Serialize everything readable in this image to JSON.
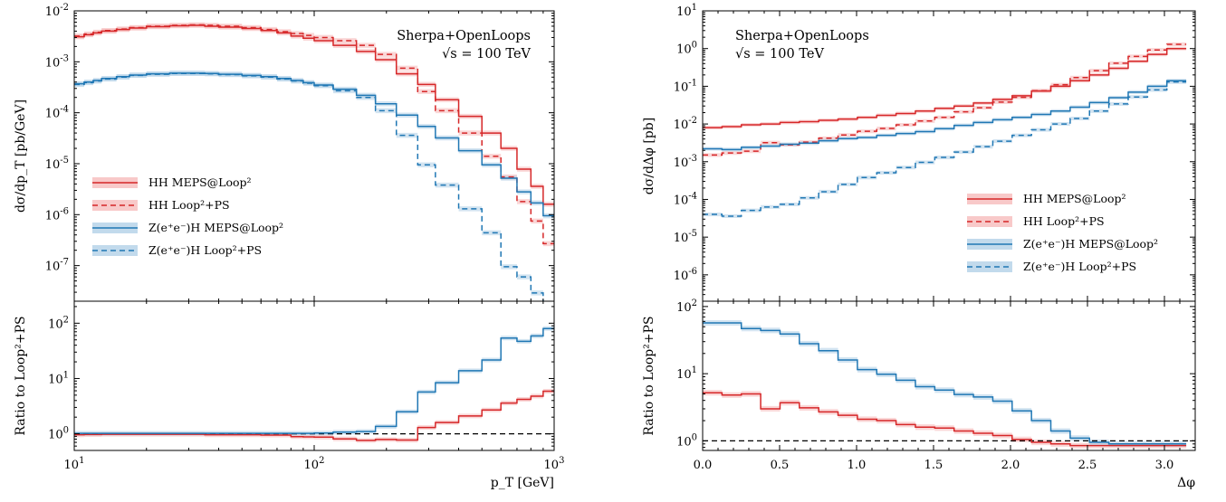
{
  "colors": {
    "hh": "#d62728",
    "zh": "#1f77b4",
    "hh_band": "#f5b7b7",
    "zh_band": "#aecde6",
    "ref_line": "#000000"
  },
  "chart_data": [
    {
      "id": "pt",
      "type": "line",
      "annotation": [
        "Sherpa+OpenLoops",
        "√s = 100 TeV"
      ],
      "xlabel": "p_T [GeV]",
      "xscale": "log",
      "xlim": [
        10,
        1000
      ],
      "xticks": [
        {
          "v": 10,
          "label": "10^1"
        },
        {
          "v": 100,
          "label": "10^2"
        },
        {
          "v": 1000,
          "label": "10^3"
        }
      ],
      "main": {
        "ylabel": "dσ/dp_T [pb/GeV]",
        "yscale": "log",
        "ylim": [
          2e-08,
          0.01
        ],
        "yticks": [
          {
            "v": 1e-07,
            "label": "10^-7"
          },
          {
            "v": 1e-06,
            "label": "10^-6"
          },
          {
            "v": 1e-05,
            "label": "10^-5"
          },
          {
            "v": 0.0001,
            "label": "10^-4"
          },
          {
            "v": 0.001,
            "label": "10^-3"
          },
          {
            "v": 0.01,
            "label": "10^-2"
          }
        ],
        "legend_position": "lower-left",
        "series": [
          {
            "name": "HH MEPS@Loop²",
            "color_key": "hh",
            "dashed": false,
            "band": true,
            "edges": [
              10,
              11,
              12,
              13,
              15,
              17,
              20,
              25,
              30,
              35,
              40,
              50,
              60,
              70,
              80,
              90,
              100,
              120,
              150,
              180,
              220,
              270,
              320,
              400,
              500,
              600,
              700,
              800,
              900,
              1000
            ],
            "values": [
              0.0031,
              0.0034,
              0.0037,
              0.004,
              0.0043,
              0.0046,
              0.0049,
              0.0051,
              0.0052,
              0.005,
              0.0048,
              0.0045,
              0.0041,
              0.0037,
              0.0032,
              0.0029,
              0.0026,
              0.0021,
              0.0016,
              0.0011,
              0.00058,
              0.00036,
              0.00018,
              8.5e-05,
              4e-05,
              2e-05,
              7.8e-06,
              3.6e-06,
              1.6e-06
            ]
          },
          {
            "name": "HH Loop²+PS",
            "color_key": "hh",
            "dashed": true,
            "band": true,
            "edges": [
              10,
              11,
              12,
              13,
              15,
              17,
              20,
              25,
              30,
              35,
              40,
              50,
              60,
              70,
              80,
              90,
              100,
              120,
              150,
              180,
              220,
              270,
              320,
              400,
              500,
              600,
              700,
              800,
              900,
              1000
            ],
            "values": [
              0.0032,
              0.0035,
              0.0038,
              0.0041,
              0.0044,
              0.0047,
              0.005,
              0.0052,
              0.0053,
              0.0052,
              0.005,
              0.0047,
              0.0043,
              0.0039,
              0.0036,
              0.0033,
              0.003,
              0.0026,
              0.0021,
              0.0014,
              0.00075,
              0.00026,
              0.00011,
              4e-05,
              1.4e-05,
              5.5e-06,
              1.8e-06,
              7.5e-07,
              2.7e-07
            ]
          },
          {
            "name": "Z(e⁺e⁻)H MEPS@Loop²",
            "color_key": "zh",
            "dashed": false,
            "band": true,
            "edges": [
              10,
              11,
              12,
              13,
              15,
              17,
              20,
              25,
              30,
              35,
              40,
              50,
              60,
              70,
              80,
              90,
              100,
              120,
              150,
              180,
              220,
              270,
              320,
              400,
              500,
              600,
              700,
              800,
              900,
              1000
            ],
            "values": [
              0.00037,
              0.0004,
              0.00043,
              0.00047,
              0.00051,
              0.00055,
              0.00058,
              0.0006,
              0.0006,
              0.00059,
              0.00057,
              0.00054,
              0.00051,
              0.00047,
              0.00043,
              0.00039,
              0.00035,
              0.00029,
              0.00022,
              0.00015,
              9e-05,
              5.4e-05,
              3.2e-05,
              1.8e-05,
              9.5e-06,
              5.2e-06,
              2.8e-06,
              1.7e-06,
              9.5e-07
            ]
          },
          {
            "name": "Z(e⁺e⁻)H Loop²+PS",
            "color_key": "zh",
            "dashed": true,
            "band": true,
            "edges": [
              10,
              11,
              12,
              13,
              15,
              17,
              20,
              25,
              30,
              35,
              40,
              50,
              60,
              70,
              80,
              90,
              100,
              120,
              150,
              180,
              220,
              270,
              320,
              400,
              500,
              600,
              700,
              800,
              900,
              1000
            ],
            "values": [
              0.00036,
              0.00039,
              0.00042,
              0.00046,
              0.0005,
              0.00054,
              0.00057,
              0.00059,
              0.00059,
              0.00058,
              0.00056,
              0.00053,
              0.0005,
              0.00046,
              0.00042,
              0.00038,
              0.00034,
              0.00027,
              0.0002,
              0.00011,
              3.6e-05,
              9.5e-06,
              3.8e-06,
              1.3e-06,
              4.4e-07,
              9.5e-08,
              6e-08,
              2.9e-08,
              1.2e-08
            ]
          }
        ]
      },
      "ratio": {
        "ylabel": "Ratio to Loop²+PS",
        "yscale": "log",
        "ylim": [
          0.5,
          250
        ],
        "yticks": [
          {
            "v": 1,
            "label": "10^0"
          },
          {
            "v": 10,
            "label": "10^1"
          },
          {
            "v": 100,
            "label": "10^2"
          }
        ],
        "reference": 1,
        "series": [
          {
            "color_key": "hh",
            "edges": [
              10,
              11,
              12,
              13,
              15,
              17,
              20,
              25,
              30,
              35,
              40,
              50,
              60,
              70,
              80,
              90,
              100,
              120,
              150,
              180,
              220,
              270,
              320,
              400,
              500,
              600,
              700,
              800,
              900,
              1000
            ],
            "values": [
              0.96,
              0.97,
              0.97,
              0.98,
              0.98,
              0.98,
              0.98,
              0.98,
              0.98,
              0.96,
              0.96,
              0.96,
              0.95,
              0.95,
              0.89,
              0.88,
              0.87,
              0.81,
              0.76,
              0.79,
              0.77,
              1.3,
              1.6,
              2.1,
              2.7,
              3.6,
              4.2,
              4.8,
              5.9
            ]
          },
          {
            "color_key": "zh",
            "edges": [
              10,
              11,
              12,
              13,
              15,
              17,
              20,
              25,
              30,
              35,
              40,
              50,
              60,
              70,
              80,
              90,
              100,
              120,
              150,
              180,
              220,
              270,
              320,
              400,
              500,
              600,
              700,
              800,
              900,
              1000
            ],
            "values": [
              1.02,
              1.02,
              1.02,
              1.02,
              1.02,
              1.02,
              1.02,
              1.02,
              1.02,
              1.02,
              1.02,
              1.02,
              1.02,
              1.02,
              1.02,
              1.02,
              1.03,
              1.07,
              1.1,
              1.36,
              2.5,
              5.7,
              8.4,
              13.8,
              21.6,
              54,
              47,
              59,
              80
            ]
          }
        ]
      }
    },
    {
      "id": "dphi",
      "type": "line",
      "annotation": [
        "Sherpa+OpenLoops",
        "√s = 100 TeV"
      ],
      "xlabel": "Δφ",
      "xscale": "linear",
      "xlim": [
        0,
        3.2
      ],
      "xticks": [
        {
          "v": 0,
          "label": "0.0"
        },
        {
          "v": 0.5,
          "label": "0.5"
        },
        {
          "v": 1,
          "label": "1.0"
        },
        {
          "v": 1.5,
          "label": "1.5"
        },
        {
          "v": 2,
          "label": "2.0"
        },
        {
          "v": 2.5,
          "label": "2.5"
        },
        {
          "v": 3,
          "label": "3.0"
        }
      ],
      "main": {
        "ylabel": "dσ/dΔφ [pb]",
        "yscale": "log",
        "ylim": [
          2e-07,
          10
        ],
        "yticks": [
          {
            "v": 1e-06,
            "label": "10^-6"
          },
          {
            "v": 1e-05,
            "label": "10^-5"
          },
          {
            "v": 0.0001,
            "label": "10^-4"
          },
          {
            "v": 0.001,
            "label": "10^-3"
          },
          {
            "v": 0.01,
            "label": "10^-2"
          },
          {
            "v": 0.1,
            "label": "10^-1"
          },
          {
            "v": 1,
            "label": "10^0"
          },
          {
            "v": 10,
            "label": "10^1"
          }
        ],
        "legend_position": "lower-right",
        "series": [
          {
            "name": "HH MEPS@Loop²",
            "color_key": "hh",
            "dashed": false,
            "band": true,
            "edges": [
              0,
              0.1257,
              0.2513,
              0.377,
              0.5027,
              0.6283,
              0.754,
              0.8796,
              1.0053,
              1.131,
              1.2566,
              1.3823,
              1.508,
              1.6336,
              1.7593,
              1.885,
              2.0106,
              2.1363,
              2.2619,
              2.3876,
              2.5133,
              2.6389,
              2.7646,
              2.8903,
              3.0159,
              3.1416
            ],
            "values": [
              0.008,
              0.0085,
              0.0095,
              0.01,
              0.011,
              0.0115,
              0.0125,
              0.0135,
              0.015,
              0.017,
              0.019,
              0.022,
              0.026,
              0.03,
              0.036,
              0.045,
              0.056,
              0.075,
              0.1,
              0.14,
              0.2,
              0.3,
              0.46,
              0.7,
              1.0
            ]
          },
          {
            "name": "HH Loop²+PS",
            "color_key": "hh",
            "dashed": true,
            "band": true,
            "edges": [
              0,
              0.1257,
              0.2513,
              0.377,
              0.5027,
              0.6283,
              0.754,
              0.8796,
              1.0053,
              1.131,
              1.2566,
              1.3823,
              1.508,
              1.6336,
              1.7593,
              1.885,
              2.0106,
              2.1363,
              2.2619,
              2.3876,
              2.5133,
              2.6389,
              2.7646,
              2.8903,
              3.0159,
              3.1416
            ],
            "values": [
              0.0015,
              0.0017,
              0.0019,
              0.0032,
              0.0028,
              0.0033,
              0.0042,
              0.0051,
              0.0064,
              0.0076,
              0.0095,
              0.012,
              0.015,
              0.021,
              0.027,
              0.038,
              0.051,
              0.076,
              0.11,
              0.17,
              0.26,
              0.41,
              0.62,
              0.92,
              1.3
            ]
          },
          {
            "name": "Z(e⁺e⁻)H MEPS@Loop²",
            "color_key": "zh",
            "dashed": false,
            "band": true,
            "edges": [
              0,
              0.1257,
              0.2513,
              0.377,
              0.5027,
              0.6283,
              0.754,
              0.8796,
              1.0053,
              1.131,
              1.2566,
              1.3823,
              1.508,
              1.6336,
              1.7593,
              1.885,
              2.0106,
              2.1363,
              2.2619,
              2.3876,
              2.5133,
              2.6389,
              2.7646,
              2.8903,
              3.0159,
              3.1416
            ],
            "values": [
              0.0022,
              0.0021,
              0.0024,
              0.0026,
              0.0029,
              0.0031,
              0.0036,
              0.0041,
              0.0044,
              0.005,
              0.0056,
              0.0063,
              0.0075,
              0.0092,
              0.011,
              0.013,
              0.015,
              0.018,
              0.022,
              0.028,
              0.037,
              0.05,
              0.07,
              0.1,
              0.14
            ]
          },
          {
            "name": "Z(e⁺e⁻)H Loop²+PS",
            "color_key": "zh",
            "dashed": true,
            "band": true,
            "edges": [
              0,
              0.1257,
              0.2513,
              0.377,
              0.5027,
              0.6283,
              0.754,
              0.8796,
              1.0053,
              1.131,
              1.2566,
              1.3823,
              1.508,
              1.6336,
              1.7593,
              1.885,
              2.0106,
              2.1363,
              2.2619,
              2.3876,
              2.5133,
              2.6389,
              2.7646,
              2.8903,
              3.0159,
              3.1416
            ],
            "values": [
              4e-05,
              3.6e-05,
              5.1e-05,
              6.3e-05,
              7.4e-05,
              0.00011,
              0.00016,
              0.00025,
              0.00038,
              0.00051,
              0.0007,
              0.00096,
              0.0013,
              0.0018,
              0.0025,
              0.0035,
              0.005,
              0.007,
              0.01,
              0.014,
              0.022,
              0.034,
              0.052,
              0.08,
              0.13
            ]
          }
        ]
      },
      "ratio": {
        "ylabel": "Ratio to Loop²+PS",
        "yscale": "log",
        "ylim": [
          0.72,
          120
        ],
        "yticks": [
          {
            "v": 1,
            "label": "10^0"
          },
          {
            "v": 10,
            "label": "10^1"
          },
          {
            "v": 100,
            "label": "10^2"
          }
        ],
        "reference": 1,
        "series": [
          {
            "color_key": "hh",
            "edges": [
              0,
              0.1257,
              0.2513,
              0.377,
              0.5027,
              0.6283,
              0.754,
              0.8796,
              1.0053,
              1.131,
              1.2566,
              1.3823,
              1.508,
              1.6336,
              1.7593,
              1.885,
              2.0106,
              2.1363,
              2.2619,
              2.3876,
              2.5133,
              2.6389,
              2.7646,
              2.8903,
              3.0159,
              3.1416
            ],
            "values": [
              5.2,
              4.8,
              5.0,
              3.0,
              3.7,
              3.1,
              2.7,
              2.4,
              2.1,
              2.0,
              1.75,
              1.6,
              1.55,
              1.4,
              1.3,
              1.2,
              1.05,
              0.95,
              0.9,
              0.85,
              0.85,
              0.85,
              0.85,
              0.85,
              0.85
            ]
          },
          {
            "color_key": "zh",
            "edges": [
              0,
              0.1257,
              0.2513,
              0.377,
              0.5027,
              0.6283,
              0.754,
              0.8796,
              1.0053,
              1.131,
              1.2566,
              1.3823,
              1.508,
              1.6336,
              1.7593,
              1.885,
              2.0106,
              2.1363,
              2.2619,
              2.3876,
              2.5133,
              2.6389,
              2.7646,
              2.8903,
              3.0159,
              3.1416
            ],
            "values": [
              57,
              57,
              47,
              44,
              39,
              28,
              22,
              16,
              11.5,
              9.8,
              8.0,
              6.4,
              5.7,
              4.9,
              4.5,
              3.9,
              2.8,
              2.0,
              1.4,
              1.1,
              0.95,
              0.9,
              0.9,
              0.9,
              0.9
            ]
          }
        ]
      }
    }
  ]
}
